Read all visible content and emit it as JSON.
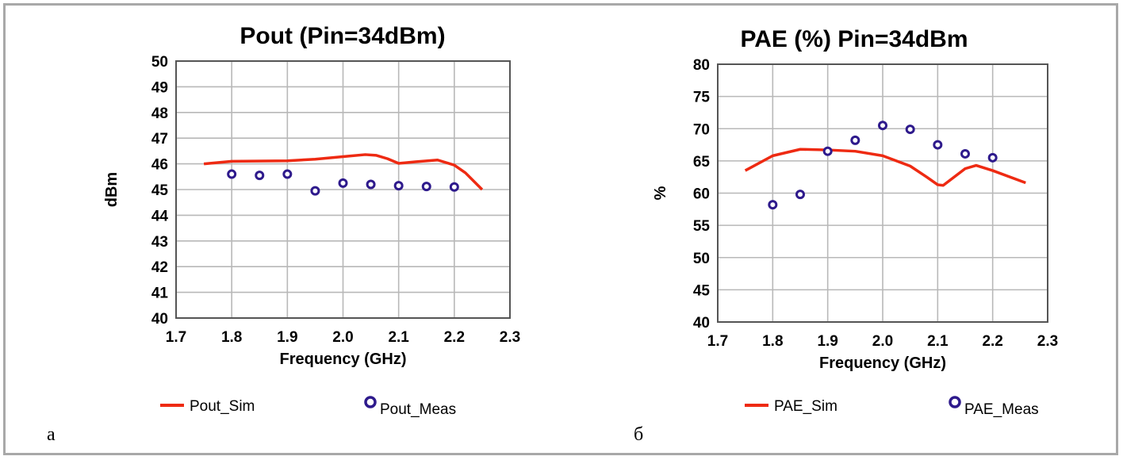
{
  "chart_data": [
    {
      "type": "line",
      "panel_label": "а",
      "title": "Pout (Pin=34dBm)",
      "xlabel": "Frequency (GHz)",
      "ylabel": "dBm",
      "xlim": [
        1.7,
        2.3
      ],
      "ylim": [
        40,
        50
      ],
      "xticks": [
        "1.7",
        "1.8",
        "1.9",
        "2.0",
        "2.1",
        "2.2",
        "2.3"
      ],
      "yticks": [
        "40",
        "41",
        "42",
        "43",
        "44",
        "45",
        "46",
        "47",
        "48",
        "49",
        "50"
      ],
      "grid": true,
      "legend": "bottom",
      "series": [
        {
          "name": "Pout_Sim",
          "kind": "line",
          "color": "#ee2a12",
          "x": [
            1.75,
            1.8,
            1.9,
            1.95,
            2.0,
            2.04,
            2.06,
            2.08,
            2.1,
            2.13,
            2.17,
            2.2,
            2.22,
            2.25
          ],
          "y": [
            46.0,
            46.1,
            46.12,
            46.18,
            46.28,
            46.36,
            46.33,
            46.2,
            46.02,
            46.08,
            46.15,
            45.95,
            45.65,
            45.0
          ]
        },
        {
          "name": "Pout_Meas",
          "kind": "scatter",
          "color": "#2e1a8c",
          "x": [
            1.8,
            1.85,
            1.9,
            1.95,
            2.0,
            2.05,
            2.1,
            2.15,
            2.2
          ],
          "y": [
            45.6,
            45.55,
            45.6,
            44.95,
            45.25,
            45.2,
            45.15,
            45.12,
            45.1
          ]
        }
      ]
    },
    {
      "type": "line",
      "panel_label": "б",
      "title": "PAE (%) Pin=34dBm",
      "xlabel": "Frequency (GHz)",
      "ylabel": "%",
      "xlim": [
        1.7,
        2.3
      ],
      "ylim": [
        40,
        80
      ],
      "xticks": [
        "1.7",
        "1.8",
        "1.9",
        "2.0",
        "2.1",
        "2.2",
        "2.3"
      ],
      "yticks": [
        "40",
        "45",
        "50",
        "55",
        "60",
        "65",
        "70",
        "75",
        "80"
      ],
      "grid": true,
      "legend": "bottom",
      "series": [
        {
          "name": "PAE_Sim",
          "kind": "line",
          "color": "#ee2a12",
          "x": [
            1.75,
            1.8,
            1.85,
            1.9,
            1.95,
            2.0,
            2.05,
            2.08,
            2.1,
            2.11,
            2.15,
            2.17,
            2.2,
            2.26
          ],
          "y": [
            63.5,
            65.8,
            66.8,
            66.7,
            66.5,
            65.8,
            64.2,
            62.5,
            61.3,
            61.2,
            63.8,
            64.3,
            63.5,
            61.6
          ]
        },
        {
          "name": "PAE_Meas",
          "kind": "scatter",
          "color": "#2e1a8c",
          "x": [
            1.8,
            1.85,
            1.9,
            1.95,
            2.0,
            2.05,
            2.1,
            2.15,
            2.2
          ],
          "y": [
            58.2,
            59.8,
            66.5,
            68.2,
            70.5,
            69.9,
            67.5,
            66.1,
            65.5
          ]
        }
      ]
    }
  ]
}
